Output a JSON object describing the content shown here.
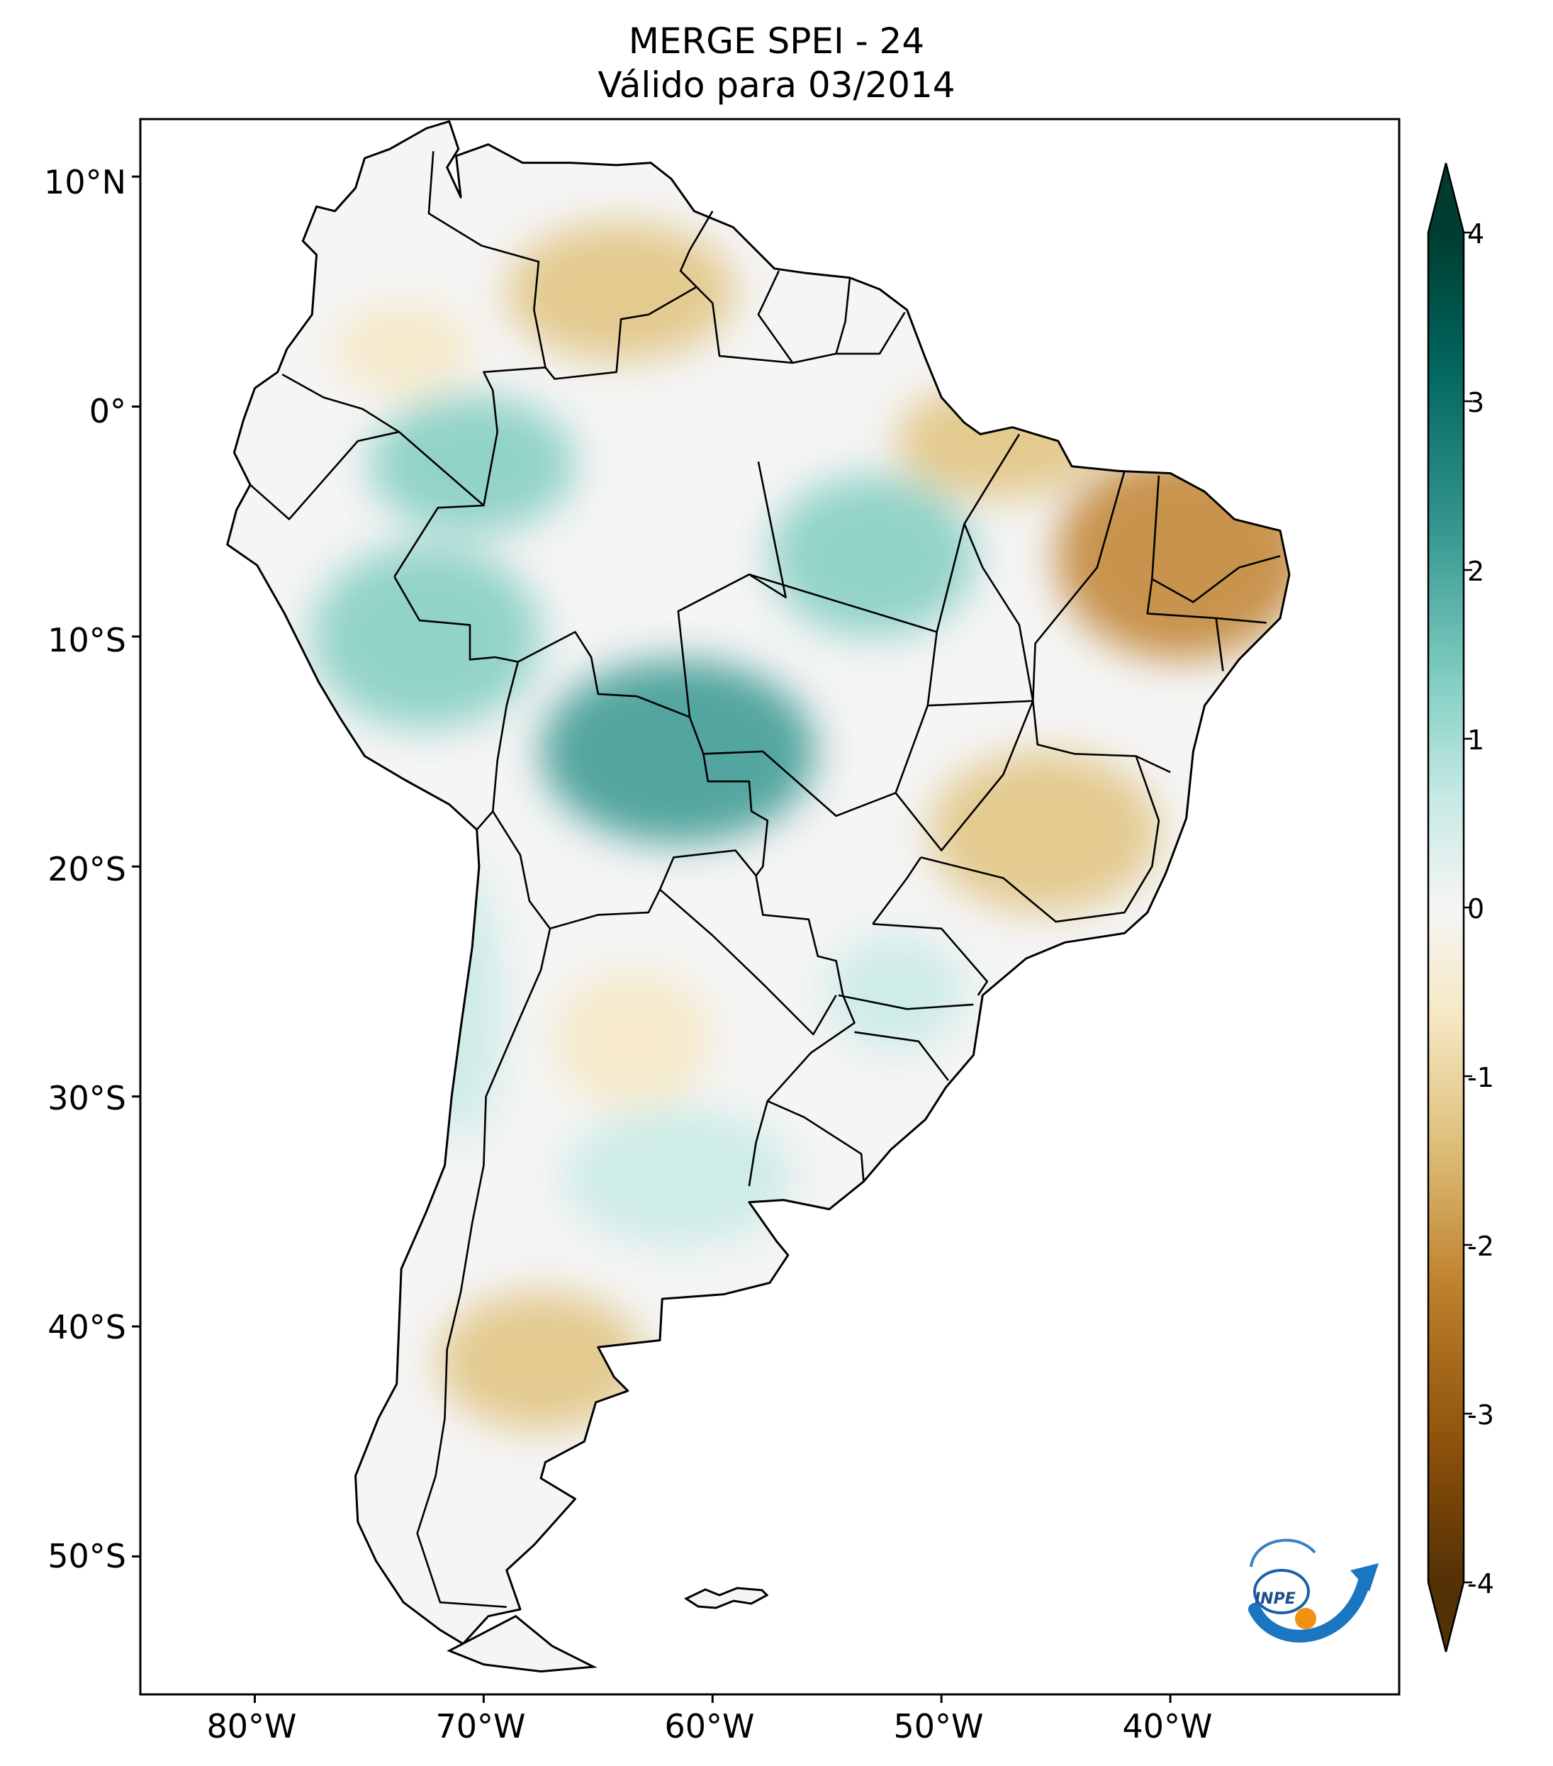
{
  "title": {
    "line1": "MERGE   SPEI - 24",
    "line2": "Válido para 03/2014"
  },
  "map": {
    "region": "South America",
    "projection": "PlateCarree",
    "lon_range": [
      -85,
      -30
    ],
    "lat_range": [
      -56,
      12.5
    ],
    "lat_ticks": [
      {
        "value": 10,
        "label": "10°N"
      },
      {
        "value": 0,
        "label": "0°"
      },
      {
        "value": -10,
        "label": "10°S"
      },
      {
        "value": -20,
        "label": "20°S"
      },
      {
        "value": -30,
        "label": "30°S"
      },
      {
        "value": -40,
        "label": "40°S"
      },
      {
        "value": -50,
        "label": "50°S"
      }
    ],
    "lon_ticks": [
      {
        "value": -80,
        "label": "80°W"
      },
      {
        "value": -70,
        "label": "70°W"
      },
      {
        "value": -60,
        "label": "60°W"
      },
      {
        "value": -50,
        "label": "50°W"
      },
      {
        "value": -40,
        "label": "40°W"
      }
    ]
  },
  "colorbar": {
    "min": -4,
    "max": 4,
    "extend": "both",
    "colormap": "BrBG",
    "ticks": [
      "4",
      "3",
      "2",
      "1",
      "0",
      "-1",
      "-2",
      "-3",
      "-4"
    ],
    "tick_values": [
      4,
      3,
      2,
      1,
      0,
      -1,
      -2,
      -3,
      -4
    ],
    "colors": {
      "dry_extreme": "#543005",
      "dry_strong": "#8c510a",
      "dry": "#bf812d",
      "dry_mild": "#dfc27d",
      "dry_light": "#f6e8c3",
      "neutral": "#f5f5f5",
      "wet_light": "#c7eae5",
      "wet_mild": "#80cdc1",
      "wet": "#35978f",
      "wet_strong": "#01665e",
      "wet_extreme": "#003c30"
    }
  },
  "anomalies": [
    {
      "region": "northeast-brazil",
      "spei": -2.2
    },
    {
      "region": "maranhao-para-north",
      "spei": -1.6
    },
    {
      "region": "venezuela-guyana",
      "spei": -1.2
    },
    {
      "region": "colombia-north",
      "spei": -0.9
    },
    {
      "region": "minas-goias",
      "spei": -1.3
    },
    {
      "region": "patagonia-north",
      "spei": -1.4
    },
    {
      "region": "chaco-central",
      "spei": -0.8
    },
    {
      "region": "bolivia-mato-grosso",
      "spei": 1.8
    },
    {
      "region": "peru-amazon",
      "spei": 1.5
    },
    {
      "region": "amazonas-north",
      "spei": 1.3
    },
    {
      "region": "para-central",
      "spei": 1.2
    },
    {
      "region": "pampas",
      "spei": 0.9
    },
    {
      "region": "chile-coast",
      "spei": 0.8
    },
    {
      "region": "parana-sc",
      "spei": 0.7
    }
  ],
  "logo": {
    "text": "INPE"
  }
}
